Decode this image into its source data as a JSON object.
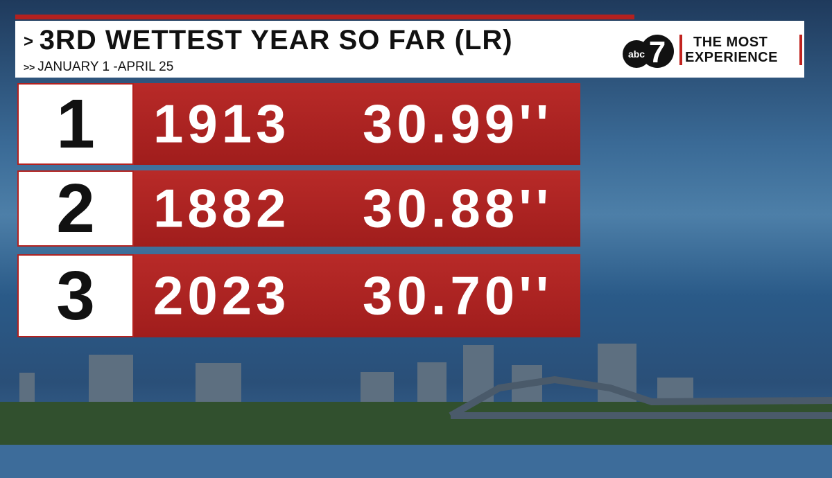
{
  "header": {
    "title": "3RD WETTEST YEAR SO FAR (LR)",
    "subtitle": "JANUARY 1 -APRIL 25"
  },
  "logo": {
    "network": "abc",
    "channel": "7",
    "tagline_1": "THE MOST",
    "tagline_2": "EXPERIENCE"
  },
  "table": {
    "rows": [
      {
        "rank": "1",
        "year": "1913",
        "amount": "30.99''"
      },
      {
        "rank": "2",
        "year": "1882",
        "amount": "30.88''"
      },
      {
        "rank": "3",
        "year": "2023",
        "amount": "30.70''"
      }
    ]
  }
}
